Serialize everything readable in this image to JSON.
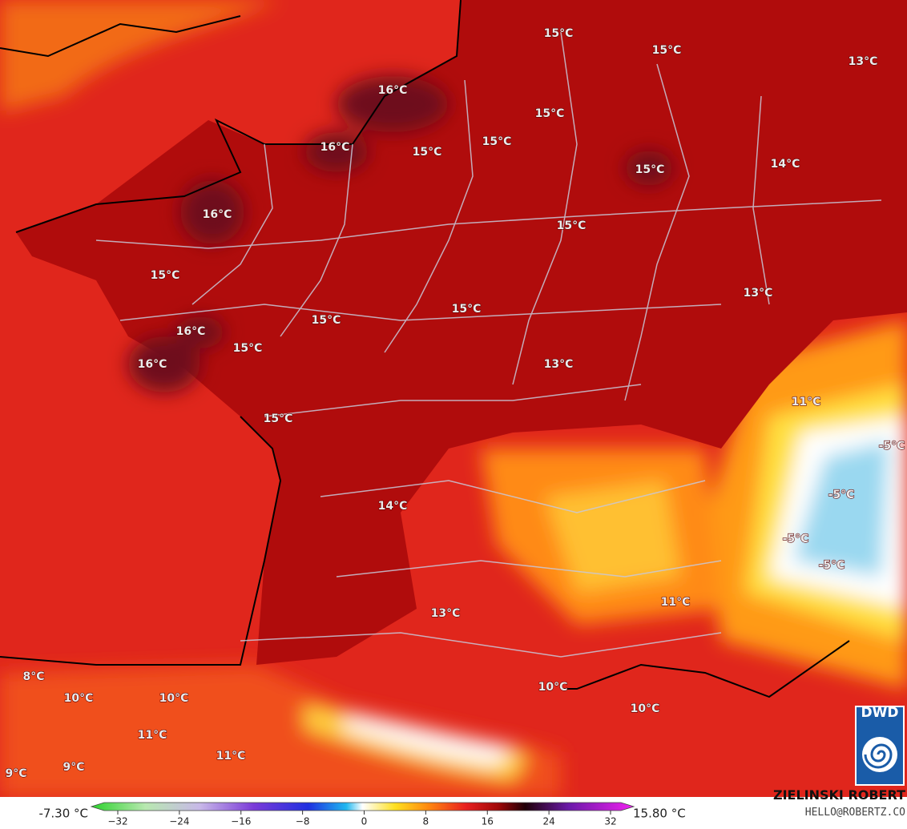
{
  "map": {
    "labels": [
      "15°C",
      "15°C",
      "13°C",
      "16°C",
      "15°C",
      "15°C",
      "16°C",
      "15°C",
      "15°C",
      "14°C",
      "16°C",
      "15°C",
      "15°C",
      "13°C",
      "15°C",
      "15°C",
      "16°C",
      "15°C",
      "16°C",
      "13°C",
      "11°C",
      "15°C",
      "-5°C",
      "-5°C",
      "14°C",
      "-5°C",
      "-5°C",
      "11°C",
      "13°C",
      "8°C",
      "10°C",
      "10°C",
      "10°C",
      "10°C",
      "11°C",
      "11°C",
      "9°C",
      "9°C"
    ]
  },
  "colorbar": {
    "min_label": "-7.30 °C",
    "max_label": "15.80 °C",
    "range": [
      -32,
      32
    ],
    "ticks": [
      {
        "value": -32,
        "label": "−32"
      },
      {
        "value": -24,
        "label": "−24"
      },
      {
        "value": -16,
        "label": "−16"
      },
      {
        "value": -8,
        "label": "−8"
      },
      0,
      8,
      16,
      24,
      32
    ]
  },
  "credits": {
    "author": "ZIELINSKI ROBERT",
    "contact": "HELLO@ROBERTZ.CO",
    "logo": "DWD"
  }
}
